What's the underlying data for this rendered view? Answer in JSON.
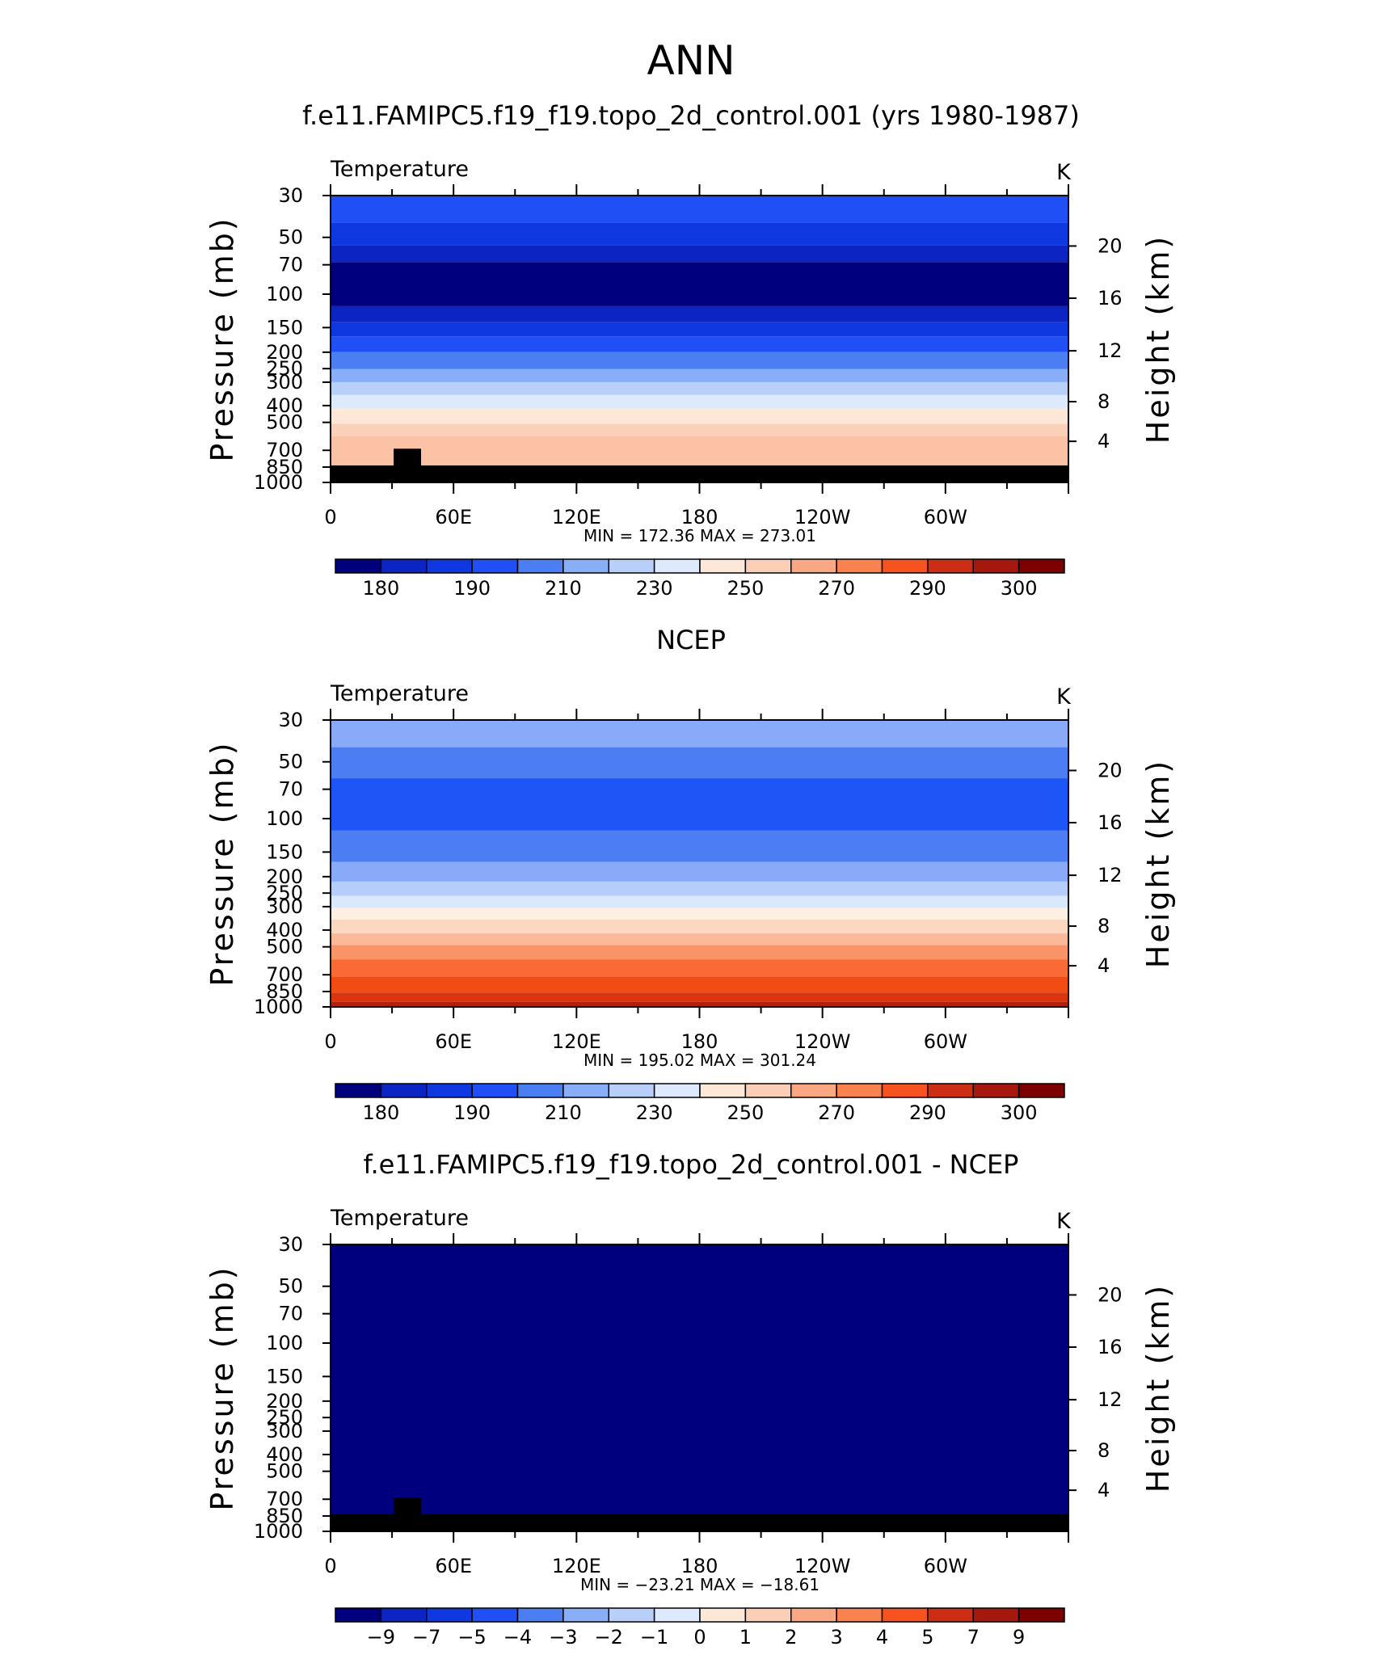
{
  "suptitle": "ANN",
  "chart_data": [
    {
      "type": "heatmap",
      "title": "f.e11.FAMIPC5.f19_f19.topo_2d_control.001 (yrs 1980-1987)",
      "left_label": "Temperature",
      "units": "K",
      "ylabel": "Pressure  (mb)",
      "y2label": "Height  (km)",
      "y_ticks": [
        30,
        50,
        70,
        100,
        150,
        200,
        250,
        300,
        400,
        500,
        700,
        850,
        1000
      ],
      "y2_ticks": [
        4,
        8,
        12,
        16,
        20
      ],
      "x_tick_labels": [
        "0",
        "60E",
        "120E",
        "180",
        "120W",
        "60W"
      ],
      "min": "172.36",
      "max": "273.01",
      "stat_text": "MIN = 172.36   MAX = 273.01",
      "levels": [
        180,
        190,
        210,
        230,
        250,
        270,
        290,
        300
      ],
      "colorbar_labels": [
        "180",
        "190",
        "210",
        "230",
        "250",
        "270",
        "290",
        "300"
      ],
      "bands": [
        {
          "p": 30,
          "color": "#1f4ff5"
        },
        {
          "p": 43,
          "color": "#0f38e0"
        },
        {
          "p": 56,
          "color": "#0b24c2"
        },
        {
          "p": 68,
          "color": "#00007e"
        },
        {
          "p": 118,
          "color": "#0b24c2"
        },
        {
          "p": 142,
          "color": "#0f38e0"
        },
        {
          "p": 168,
          "color": "#1f4ff5"
        },
        {
          "p": 200,
          "color": "#4a7ef2"
        },
        {
          "p": 252,
          "color": "#88aef8"
        },
        {
          "p": 300,
          "color": "#b7cff9"
        },
        {
          "p": 355,
          "color": "#dde9fd"
        },
        {
          "p": 415,
          "color": "#fde8d8"
        },
        {
          "p": 510,
          "color": "#fbd0b8"
        },
        {
          "p": 600,
          "color": "#fbc2a6"
        }
      ],
      "terrain": true
    },
    {
      "type": "heatmap",
      "title": "NCEP",
      "left_label": "Temperature",
      "units": "K",
      "ylabel": "Pressure  (mb)",
      "y2label": "Height  (km)",
      "y_ticks": [
        30,
        50,
        70,
        100,
        150,
        200,
        250,
        300,
        400,
        500,
        700,
        850,
        1000
      ],
      "y2_ticks": [
        4,
        8,
        12,
        16,
        20
      ],
      "x_tick_labels": [
        "0",
        "60E",
        "120E",
        "180",
        "120W",
        "60W"
      ],
      "min": "195.02",
      "max": "301.24",
      "stat_text": "MIN = 195.02   MAX = 301.24",
      "levels": [
        180,
        190,
        210,
        230,
        250,
        270,
        290,
        300
      ],
      "colorbar_labels": [
        "180",
        "190",
        "210",
        "230",
        "250",
        "270",
        "290",
        "300"
      ],
      "bands": [
        {
          "p": 30,
          "color": "#88aaf9"
        },
        {
          "p": 43,
          "color": "#4c7df3"
        },
        {
          "p": 62,
          "color": "#1e55f7"
        },
        {
          "p": 118,
          "color": "#4c7df3"
        },
        {
          "p": 170,
          "color": "#88aaf9"
        },
        {
          "p": 215,
          "color": "#b4cdfb"
        },
        {
          "p": 260,
          "color": "#dae8fd"
        },
        {
          "p": 305,
          "color": "#fdf0e2"
        },
        {
          "p": 355,
          "color": "#fcd8c0"
        },
        {
          "p": 420,
          "color": "#fbb99a"
        },
        {
          "p": 490,
          "color": "#f99468"
        },
        {
          "p": 590,
          "color": "#f96a34"
        },
        {
          "p": 720,
          "color": "#f14c14"
        },
        {
          "p": 860,
          "color": "#d93610"
        },
        {
          "p": 950,
          "color": "#b3200d"
        }
      ],
      "terrain": false
    },
    {
      "type": "heatmap",
      "title": "f.e11.FAMIPC5.f19_f19.topo_2d_control.001 - NCEP",
      "left_label": "Temperature",
      "units": "K",
      "ylabel": "Pressure  (mb)",
      "y2label": "Height  (km)",
      "y_ticks": [
        30,
        50,
        70,
        100,
        150,
        200,
        250,
        300,
        400,
        500,
        700,
        850,
        1000
      ],
      "y2_ticks": [
        4,
        8,
        12,
        16,
        20
      ],
      "x_tick_labels": [
        "0",
        "60E",
        "120E",
        "180",
        "120W",
        "60W"
      ],
      "min": "−23.21",
      "max": "−18.61",
      "stat_text": "MIN = −23.21   MAX = −18.61",
      "levels": [
        -9,
        -7,
        -5,
        -4,
        -3,
        -2,
        -1,
        0,
        1,
        2,
        3,
        4,
        5,
        7,
        9
      ],
      "colorbar_labels": [
        "−9",
        "−7",
        "−5",
        "−4",
        "−3",
        "−2",
        "−1",
        "0",
        "1",
        "2",
        "3",
        "4",
        "5",
        "7",
        "9"
      ],
      "bands": [
        {
          "p": 30,
          "color": "#00007e"
        }
      ],
      "terrain": true
    }
  ],
  "colorbar_colors": [
    "#00007e",
    "#0b24c2",
    "#0f38e0",
    "#1f4ff5",
    "#4a7ef2",
    "#88aef8",
    "#b7cff9",
    "#dde9fd",
    "#fde8d8",
    "#fbcfb7",
    "#f9a883",
    "#f9824f",
    "#f65320",
    "#cb2e12",
    "#a6170d",
    "#7d0000"
  ]
}
